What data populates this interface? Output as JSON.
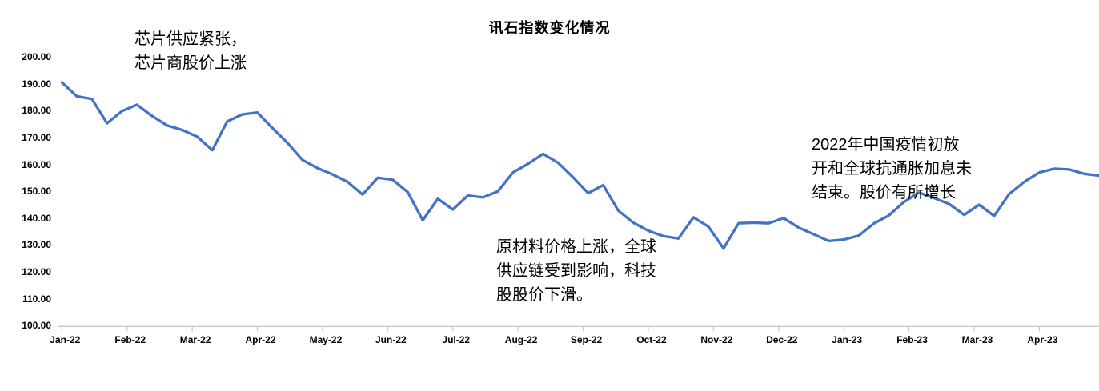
{
  "title": "讯石指数变化情况",
  "chart_data": {
    "type": "line",
    "title": "讯石指数变化情况",
    "series_name": "讯石指数",
    "frequency": "weekly",
    "grid": "off",
    "legend": "none",
    "line_color": "#4472C4",
    "axis_color": "#C9C9C9",
    "xlabel": "",
    "ylabel": "",
    "ylim": [
      100,
      200
    ],
    "y_tick_labels": [
      "200.00",
      "190.00",
      "180.00",
      "170.00",
      "160.00",
      "150.00",
      "140.00",
      "130.00",
      "120.00",
      "110.00",
      "100.00"
    ],
    "x_tick_labels": [
      "Jan-22",
      "Feb-22",
      "Mar-22",
      "Apr-22",
      "May-22",
      "Jun-22",
      "Jul-22",
      "Aug-22",
      "Sep-22",
      "Oct-22",
      "Nov-22",
      "Dec-22",
      "Jan-23",
      "Feb-23",
      "Mar-23",
      "Apr-23"
    ],
    "values": [
      190.5,
      185.3,
      184.3,
      175.3,
      179.8,
      182.2,
      178.0,
      174.5,
      172.8,
      170.3,
      165.3,
      176.0,
      178.6,
      179.3,
      173.5,
      168.0,
      161.6,
      158.6,
      156.3,
      153.5,
      148.8,
      155.0,
      154.3,
      149.7,
      139.2,
      147.2,
      143.2,
      148.4,
      147.7,
      150.0,
      157.0,
      160.2,
      163.9,
      160.6,
      155.2,
      149.3,
      152.3,
      142.8,
      138.3,
      135.3,
      133.3,
      132.4,
      140.3,
      136.8,
      128.7,
      138.1,
      138.3,
      138.1,
      140.0,
      136.5,
      134.0,
      131.5,
      132.0,
      133.5,
      138.0,
      141.0,
      146.0,
      149.5,
      147.5,
      145.3,
      141.2,
      145.0,
      140.8,
      149.0,
      153.5,
      157.0,
      158.4,
      158.1,
      156.5,
      155.8
    ]
  },
  "annotations": {
    "chip": {
      "text": "芯片供应紧张，\n芯片商股价上涨"
    },
    "supply": {
      "text": "原材料价格上涨，全球\n供应链受到影响，科技\n股股价下滑。"
    },
    "reopen": {
      "text": "2022年中国疫情初放\n开和全球抗通胀加息未\n结束。股价有所增长"
    }
  }
}
